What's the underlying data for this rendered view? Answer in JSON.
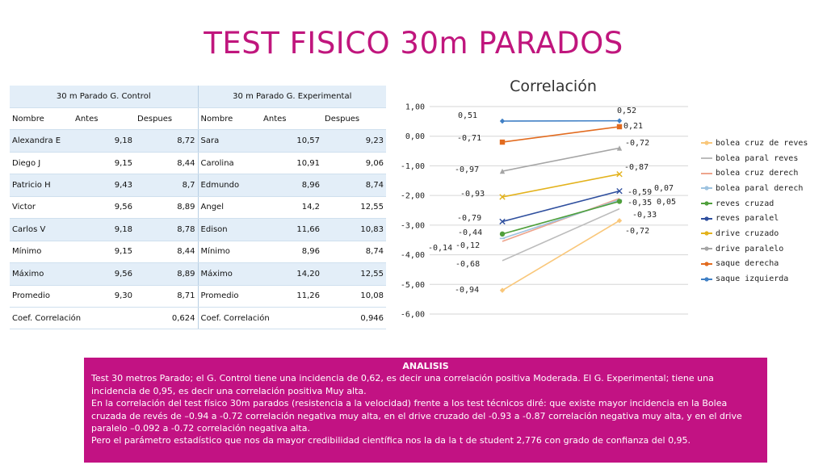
{
  "title": "TEST FISICO 30m PARADOS",
  "table": {
    "group_headers": [
      "30 m Parado G. Control",
      "30 m Parado G. Experimental"
    ],
    "col_headers": [
      "Nombre",
      "Antes",
      "Despues",
      "Nombre",
      "Antes",
      "Despues"
    ],
    "rows": [
      [
        "Alexandra E",
        "9,18",
        "8,72",
        "Sara",
        "10,57",
        "9,23"
      ],
      [
        "Diego J",
        "9,15",
        "8,44",
        "Carolina",
        "10,91",
        "9,06"
      ],
      [
        "Patricio H",
        "9,43",
        "8,7",
        "Edmundo",
        "8,96",
        "8,74"
      ],
      [
        "Victor",
        "9,56",
        "8,89",
        "Angel",
        "14,2",
        "12,55"
      ],
      [
        "Carlos V",
        "9,18",
        "8,78",
        "Edison",
        "11,66",
        "10,83"
      ],
      [
        "Mínimo",
        "9,15",
        "8,44",
        "Mínimo",
        "8,96",
        "8,74"
      ],
      [
        "Máximo",
        "9,56",
        "8,89",
        "Máximo",
        "14,20",
        "12,55"
      ],
      [
        "Promedio",
        "9,30",
        "8,71",
        "Promedio",
        "11,26",
        "10,08"
      ]
    ],
    "corr_row": {
      "label_left": "Coef. Correlación",
      "value_left": "0,624",
      "label_right": "Coef. Correlación",
      "value_right": "0,946"
    }
  },
  "chart_data": {
    "type": "line",
    "title": "Correlación",
    "ylim": [
      -6,
      1
    ],
    "y_ticks": [
      "1,00",
      "0,00",
      "-1,00",
      "-2,00",
      "-3,00",
      "-4,00",
      "-5,00",
      "-6,00"
    ],
    "gridlines": true,
    "legend_position": "right",
    "series": [
      {
        "name": "bolea cruz de reves",
        "color": "#f9c77a",
        "marker": "diamond",
        "values": [
          -5.2,
          -2.85
        ]
      },
      {
        "name": "bolea paral reves",
        "color": "#bcbcbc",
        "marker": "none",
        "values": [
          -4.2,
          -2.45
        ]
      },
      {
        "name": "bolea cruz derech",
        "color": "#eea48c",
        "marker": "none",
        "values": [
          -3.55,
          -2.1
        ]
      },
      {
        "name": "bolea paral derech",
        "color": "#9ec3e0",
        "marker": "dash",
        "values": [
          -3.45,
          -2.15
        ]
      },
      {
        "name": "reves cruzad",
        "color": "#4f9f3b",
        "marker": "circle",
        "values": [
          -3.3,
          -2.2
        ]
      },
      {
        "name": "reves paralel",
        "color": "#2f4f9e",
        "marker": "x",
        "values": [
          -2.88,
          -1.85
        ]
      },
      {
        "name": "drive cruzado",
        "color": "#e3b21c",
        "marker": "x",
        "values": [
          -2.05,
          -1.28
        ]
      },
      {
        "name": "drive paralelo",
        "color": "#a5a5a5",
        "marker": "triangle",
        "values": [
          -1.18,
          -0.4
        ]
      },
      {
        "name": "saque derecha",
        "color": "#e26b1f",
        "marker": "square",
        "values": [
          -0.2,
          0.32
        ]
      },
      {
        "name": "saque izquierda",
        "color": "#3f7fc5",
        "marker": "diamond",
        "values": [
          0.51,
          0.52
        ]
      }
    ],
    "data_labels": {
      "before": [
        "0,51",
        "-0,71",
        "-0,97",
        "-0,93",
        "-0,79",
        "-0,44",
        "-0,12",
        "-0,14",
        "-0,68",
        "-0,94"
      ],
      "after": [
        "0,52",
        "0,21",
        "-0,72",
        "-0,87",
        "-0,59",
        "0,07",
        "-0,35",
        "0,05",
        "-0,33",
        "-0,72"
      ]
    }
  },
  "analysis": {
    "heading": "ANALISIS",
    "p1": "Test 30 metros Parado; el G. Control tiene una incidencia de 0,62, es decir una correlación positiva Moderada. El G. Experimental; tiene una incidencia de 0,95, es decir una correlación positiva Muy alta.",
    "p2": "En la correlación del test físico 30m parados (resistencia  a la velocidad) frente a los test técnicos diré: que existe mayor incidencia en la Bolea cruzada de revés de –0.94 a -0.72 correlación negativa muy alta, en el drive cruzado del -0.93 a -0.87 correlación negativa muy alta, y en el drive paralelo –0.092 a -0.72 correlación negativa alta.",
    "p3": "Pero el parámetro estadístico que nos da mayor credibilidad científica nos la da la t de student 2,776 con grado de confianza del 0,95."
  }
}
